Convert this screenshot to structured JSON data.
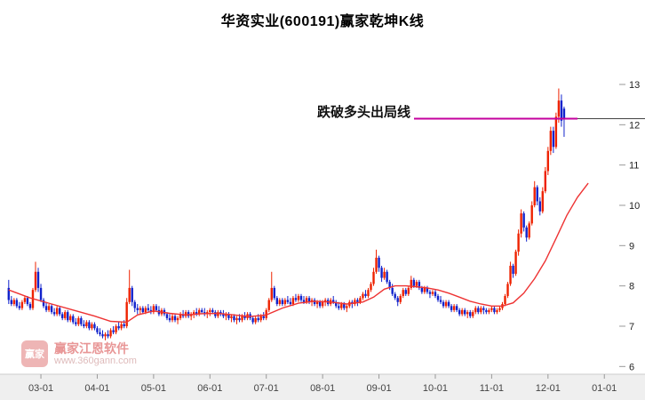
{
  "title": "华资实业(600191)赢家乾坤K线",
  "annotation": {
    "label": "跌破多头出局线",
    "value": 12.15
  },
  "watermark": {
    "logo_text": "赢家",
    "brand": "赢家江恩软件",
    "url": "www.360gann.com"
  },
  "colors": {
    "up": "#ee2200",
    "down": "#1122cc",
    "ma": "#ee3333",
    "annotation": "#c4009e",
    "axis_bg": "#efefef",
    "axis_text": "#444444",
    "price_line": "#444444"
  },
  "chart_data": {
    "type": "candlestick",
    "title": "华资实业(600191)赢家乾坤K线",
    "x_ticks": [
      "03-01",
      "04-01",
      "05-01",
      "06-01",
      "07-01",
      "08-01",
      "09-01",
      "10-01",
      "11-01",
      "12-01",
      "01-01"
    ],
    "x_tick_indices": [
      12,
      33,
      54,
      75,
      96,
      117,
      138,
      159,
      180,
      201,
      222
    ],
    "y_ticks": [
      13,
      12,
      11,
      10,
      9,
      8,
      7,
      6
    ],
    "ylim": [
      6,
      13
    ],
    "grid": false,
    "legend": "none",
    "series_note": "daily OHLC candles, values estimated from chart; red MA overlay line",
    "candles": [
      [
        7.95,
        8.15,
        7.55,
        7.65
      ],
      [
        7.65,
        7.75,
        7.5,
        7.55
      ],
      [
        7.55,
        7.7,
        7.5,
        7.65
      ],
      [
        7.65,
        7.7,
        7.45,
        7.5
      ],
      [
        7.5,
        7.6,
        7.4,
        7.45
      ],
      [
        7.45,
        7.65,
        7.4,
        7.6
      ],
      [
        7.6,
        7.75,
        7.55,
        7.7
      ],
      [
        7.7,
        7.75,
        7.5,
        7.55
      ],
      [
        7.55,
        7.6,
        7.4,
        7.45
      ],
      [
        7.45,
        7.95,
        7.4,
        7.9
      ],
      [
        7.9,
        8.6,
        7.85,
        8.35
      ],
      [
        8.35,
        8.45,
        7.85,
        7.95
      ],
      [
        7.95,
        8.05,
        7.6,
        7.65
      ],
      [
        7.65,
        7.7,
        7.45,
        7.5
      ],
      [
        7.5,
        7.6,
        7.35,
        7.4
      ],
      [
        7.4,
        7.55,
        7.35,
        7.5
      ],
      [
        7.5,
        7.55,
        7.3,
        7.35
      ],
      [
        7.35,
        7.45,
        7.25,
        7.3
      ],
      [
        7.3,
        7.5,
        7.25,
        7.45
      ],
      [
        7.45,
        7.5,
        7.25,
        7.3
      ],
      [
        7.3,
        7.35,
        7.15,
        7.2
      ],
      [
        7.2,
        7.4,
        7.15,
        7.35
      ],
      [
        7.35,
        7.4,
        7.1,
        7.15
      ],
      [
        7.15,
        7.3,
        7.1,
        7.25
      ],
      [
        7.25,
        7.3,
        7.05,
        7.1
      ],
      [
        7.1,
        7.2,
        7.0,
        7.05
      ],
      [
        7.05,
        7.25,
        7.0,
        7.2
      ],
      [
        7.2,
        7.25,
        7.0,
        7.05
      ],
      [
        7.05,
        7.15,
        6.95,
        7.0
      ],
      [
        7.0,
        7.15,
        6.95,
        7.1
      ],
      [
        7.1,
        7.15,
        6.9,
        6.95
      ],
      [
        6.95,
        7.1,
        6.9,
        7.05
      ],
      [
        7.05,
        7.1,
        6.9,
        6.95
      ],
      [
        6.95,
        7.0,
        6.8,
        6.85
      ],
      [
        6.85,
        6.95,
        6.75,
        6.8
      ],
      [
        6.8,
        6.9,
        6.7,
        6.75
      ],
      [
        6.75,
        6.85,
        6.65,
        6.8
      ],
      [
        6.8,
        6.9,
        6.7,
        6.75
      ],
      [
        6.75,
        6.95,
        6.7,
        6.9
      ],
      [
        6.9,
        7.0,
        6.8,
        6.85
      ],
      [
        6.85,
        7.05,
        6.8,
        7.0
      ],
      [
        7.0,
        7.1,
        6.9,
        6.95
      ],
      [
        6.95,
        7.1,
        6.9,
        7.05
      ],
      [
        7.05,
        7.15,
        6.95,
        7.0
      ],
      [
        7.0,
        7.7,
        6.95,
        7.6
      ],
      [
        7.6,
        8.4,
        7.55,
        7.95
      ],
      [
        7.95,
        8.0,
        7.5,
        7.6
      ],
      [
        7.6,
        7.65,
        7.35,
        7.45
      ],
      [
        7.45,
        7.55,
        7.3,
        7.4
      ],
      [
        7.4,
        7.5,
        7.3,
        7.45
      ],
      [
        7.45,
        7.5,
        7.3,
        7.35
      ],
      [
        7.35,
        7.5,
        7.3,
        7.45
      ],
      [
        7.45,
        7.55,
        7.35,
        7.4
      ],
      [
        7.4,
        7.5,
        7.3,
        7.35
      ],
      [
        7.35,
        7.55,
        7.3,
        7.5
      ],
      [
        7.5,
        7.55,
        7.35,
        7.4
      ],
      [
        7.4,
        7.5,
        7.25,
        7.3
      ],
      [
        7.3,
        7.45,
        7.25,
        7.4
      ],
      [
        7.4,
        7.45,
        7.25,
        7.3
      ],
      [
        7.3,
        7.35,
        7.15,
        7.2
      ],
      [
        7.2,
        7.3,
        7.1,
        7.15
      ],
      [
        7.15,
        7.3,
        7.1,
        7.25
      ],
      [
        7.25,
        7.3,
        7.1,
        7.15
      ],
      [
        7.15,
        7.25,
        7.05,
        7.2
      ],
      [
        7.2,
        7.35,
        7.15,
        7.3
      ],
      [
        7.3,
        7.4,
        7.2,
        7.25
      ],
      [
        7.25,
        7.4,
        7.2,
        7.35
      ],
      [
        7.35,
        7.4,
        7.2,
        7.25
      ],
      [
        7.25,
        7.35,
        7.15,
        7.3
      ],
      [
        7.3,
        7.4,
        7.2,
        7.35
      ],
      [
        7.35,
        7.45,
        7.25,
        7.3
      ],
      [
        7.3,
        7.45,
        7.25,
        7.4
      ],
      [
        7.4,
        7.45,
        7.3,
        7.35
      ],
      [
        7.35,
        7.45,
        7.25,
        7.3
      ],
      [
        7.3,
        7.4,
        7.2,
        7.35
      ],
      [
        7.35,
        7.45,
        7.25,
        7.4
      ],
      [
        7.4,
        7.45,
        7.3,
        7.35
      ],
      [
        7.35,
        7.4,
        7.2,
        7.25
      ],
      [
        7.25,
        7.4,
        7.2,
        7.35
      ],
      [
        7.35,
        7.4,
        7.25,
        7.3
      ],
      [
        7.3,
        7.4,
        7.2,
        7.25
      ],
      [
        7.25,
        7.35,
        7.15,
        7.3
      ],
      [
        7.3,
        7.35,
        7.15,
        7.2
      ],
      [
        7.2,
        7.3,
        7.1,
        7.25
      ],
      [
        7.25,
        7.3,
        7.1,
        7.15
      ],
      [
        7.15,
        7.25,
        7.05,
        7.2
      ],
      [
        7.2,
        7.3,
        7.1,
        7.15
      ],
      [
        7.15,
        7.3,
        7.1,
        7.25
      ],
      [
        7.25,
        7.35,
        7.15,
        7.2
      ],
      [
        7.2,
        7.35,
        7.15,
        7.3
      ],
      [
        7.3,
        7.35,
        7.15,
        7.2
      ],
      [
        7.2,
        7.25,
        7.05,
        7.1
      ],
      [
        7.1,
        7.25,
        7.05,
        7.2
      ],
      [
        7.2,
        7.3,
        7.1,
        7.15
      ],
      [
        7.15,
        7.3,
        7.1,
        7.25
      ],
      [
        7.25,
        7.35,
        7.15,
        7.2
      ],
      [
        7.2,
        7.45,
        7.15,
        7.4
      ],
      [
        7.4,
        7.7,
        7.35,
        7.65
      ],
      [
        7.65,
        8.35,
        7.6,
        7.95
      ],
      [
        7.95,
        8.0,
        7.65,
        7.7
      ],
      [
        7.7,
        7.75,
        7.5,
        7.55
      ],
      [
        7.55,
        7.7,
        7.5,
        7.65
      ],
      [
        7.65,
        7.7,
        7.5,
        7.55
      ],
      [
        7.55,
        7.7,
        7.5,
        7.65
      ],
      [
        7.65,
        7.75,
        7.55,
        7.6
      ],
      [
        7.6,
        7.7,
        7.5,
        7.55
      ],
      [
        7.55,
        7.75,
        7.5,
        7.7
      ],
      [
        7.7,
        7.8,
        7.6,
        7.65
      ],
      [
        7.65,
        7.8,
        7.6,
        7.75
      ],
      [
        7.75,
        7.8,
        7.6,
        7.65
      ],
      [
        7.65,
        7.75,
        7.55,
        7.6
      ],
      [
        7.6,
        7.75,
        7.55,
        7.7
      ],
      [
        7.7,
        7.75,
        7.55,
        7.6
      ],
      [
        7.6,
        7.7,
        7.5,
        7.65
      ],
      [
        7.65,
        7.7,
        7.5,
        7.55
      ],
      [
        7.55,
        7.65,
        7.45,
        7.6
      ],
      [
        7.6,
        7.65,
        7.45,
        7.5
      ],
      [
        7.5,
        7.65,
        7.45,
        7.6
      ],
      [
        7.6,
        7.7,
        7.5,
        7.65
      ],
      [
        7.65,
        7.7,
        7.5,
        7.55
      ],
      [
        7.55,
        7.7,
        7.5,
        7.65
      ],
      [
        7.65,
        7.75,
        7.55,
        7.6
      ],
      [
        7.6,
        7.65,
        7.45,
        7.5
      ],
      [
        7.5,
        7.6,
        7.4,
        7.45
      ],
      [
        7.45,
        7.6,
        7.4,
        7.55
      ],
      [
        7.55,
        7.6,
        7.4,
        7.45
      ],
      [
        7.45,
        7.55,
        7.35,
        7.5
      ],
      [
        7.5,
        7.65,
        7.45,
        7.6
      ],
      [
        7.6,
        7.65,
        7.45,
        7.55
      ],
      [
        7.55,
        7.7,
        7.5,
        7.65
      ],
      [
        7.65,
        7.7,
        7.5,
        7.6
      ],
      [
        7.6,
        7.75,
        7.55,
        7.7
      ],
      [
        7.7,
        7.85,
        7.65,
        7.8
      ],
      [
        7.8,
        7.9,
        7.7,
        7.75
      ],
      [
        7.75,
        7.95,
        7.7,
        7.9
      ],
      [
        7.9,
        8.1,
        7.85,
        8.05
      ],
      [
        8.05,
        8.45,
        8.0,
        8.35
      ],
      [
        8.35,
        8.9,
        8.3,
        8.7
      ],
      [
        8.7,
        8.75,
        8.35,
        8.45
      ],
      [
        8.45,
        8.5,
        8.1,
        8.2
      ],
      [
        8.2,
        8.45,
        8.15,
        8.35
      ],
      [
        8.35,
        8.4,
        8.05,
        8.1
      ],
      [
        8.1,
        8.15,
        7.9,
        7.95
      ],
      [
        7.95,
        8.05,
        7.75,
        7.8
      ],
      [
        7.8,
        7.85,
        7.65,
        7.7
      ],
      [
        7.7,
        7.75,
        7.5,
        7.6
      ],
      [
        7.6,
        7.8,
        7.55,
        7.75
      ],
      [
        7.75,
        7.95,
        7.7,
        7.9
      ],
      [
        7.9,
        7.95,
        7.75,
        7.8
      ],
      [
        7.8,
        8.0,
        7.75,
        7.95
      ],
      [
        7.95,
        8.25,
        7.9,
        8.15
      ],
      [
        8.15,
        8.2,
        7.95,
        8.0
      ],
      [
        8.0,
        8.15,
        7.95,
        8.1
      ],
      [
        8.1,
        8.15,
        7.9,
        7.95
      ],
      [
        7.95,
        8.0,
        7.8,
        7.85
      ],
      [
        7.85,
        8.0,
        7.8,
        7.95
      ],
      [
        7.95,
        8.0,
        7.8,
        7.85
      ],
      [
        7.85,
        7.9,
        7.7,
        7.8
      ],
      [
        7.8,
        7.9,
        7.75,
        7.85
      ],
      [
        7.85,
        7.9,
        7.7,
        7.75
      ],
      [
        7.75,
        7.8,
        7.6,
        7.65
      ],
      [
        7.65,
        7.75,
        7.55,
        7.6
      ],
      [
        7.6,
        7.65,
        7.45,
        7.5
      ],
      [
        7.5,
        7.65,
        7.45,
        7.6
      ],
      [
        7.6,
        7.65,
        7.45,
        7.5
      ],
      [
        7.5,
        7.55,
        7.35,
        7.4
      ],
      [
        7.4,
        7.55,
        7.35,
        7.5
      ],
      [
        7.5,
        7.55,
        7.35,
        7.4
      ],
      [
        7.4,
        7.45,
        7.25,
        7.3
      ],
      [
        7.3,
        7.45,
        7.25,
        7.4
      ],
      [
        7.4,
        7.45,
        7.25,
        7.3
      ],
      [
        7.3,
        7.4,
        7.2,
        7.35
      ],
      [
        7.35,
        7.4,
        7.2,
        7.25
      ],
      [
        7.25,
        7.4,
        7.2,
        7.35
      ],
      [
        7.35,
        7.5,
        7.3,
        7.45
      ],
      [
        7.45,
        7.5,
        7.3,
        7.35
      ],
      [
        7.35,
        7.5,
        7.3,
        7.45
      ],
      [
        7.45,
        7.5,
        7.3,
        7.4
      ],
      [
        7.4,
        7.45,
        7.3,
        7.35
      ],
      [
        7.35,
        7.45,
        7.3,
        7.4
      ],
      [
        7.4,
        7.5,
        7.35,
        7.45
      ],
      [
        7.45,
        7.5,
        7.3,
        7.35
      ],
      [
        7.35,
        7.45,
        7.3,
        7.4
      ],
      [
        7.4,
        7.5,
        7.35,
        7.45
      ],
      [
        7.45,
        7.6,
        7.4,
        7.55
      ],
      [
        7.55,
        7.8,
        7.5,
        7.75
      ],
      [
        7.75,
        8.1,
        7.7,
        8.05
      ],
      [
        8.05,
        8.6,
        8.0,
        8.5
      ],
      [
        8.5,
        8.55,
        8.2,
        8.3
      ],
      [
        8.3,
        8.9,
        8.25,
        8.85
      ],
      [
        8.85,
        9.4,
        8.75,
        9.3
      ],
      [
        9.3,
        9.9,
        9.2,
        9.8
      ],
      [
        9.8,
        9.85,
        9.35,
        9.45
      ],
      [
        9.45,
        9.5,
        9.1,
        9.2
      ],
      [
        9.2,
        9.6,
        9.15,
        9.55
      ],
      [
        9.55,
        10.1,
        9.5,
        10.0
      ],
      [
        10.0,
        10.6,
        9.95,
        10.45
      ],
      [
        10.45,
        10.5,
        10.0,
        10.1
      ],
      [
        10.1,
        10.2,
        9.75,
        9.85
      ],
      [
        9.85,
        10.45,
        9.8,
        10.35
      ],
      [
        10.35,
        10.95,
        10.3,
        10.85
      ],
      [
        10.85,
        11.45,
        10.75,
        11.35
      ],
      [
        11.35,
        11.95,
        11.25,
        11.85
      ],
      [
        11.85,
        11.95,
        11.3,
        11.45
      ],
      [
        11.45,
        12.3,
        11.4,
        12.2
      ],
      [
        12.2,
        12.9,
        12.05,
        12.6
      ],
      [
        12.6,
        12.75,
        11.95,
        12.1
      ],
      [
        12.4,
        12.45,
        11.7,
        12.15
      ]
    ],
    "ma_line": [
      [
        0,
        7.9
      ],
      [
        8,
        7.7
      ],
      [
        16,
        7.55
      ],
      [
        24,
        7.4
      ],
      [
        32,
        7.25
      ],
      [
        38,
        7.12
      ],
      [
        44,
        7.1
      ],
      [
        48,
        7.28
      ],
      [
        54,
        7.38
      ],
      [
        60,
        7.32
      ],
      [
        66,
        7.28
      ],
      [
        72,
        7.31
      ],
      [
        78,
        7.32
      ],
      [
        84,
        7.28
      ],
      [
        90,
        7.24
      ],
      [
        96,
        7.28
      ],
      [
        102,
        7.45
      ],
      [
        108,
        7.57
      ],
      [
        114,
        7.62
      ],
      [
        120,
        7.6
      ],
      [
        126,
        7.55
      ],
      [
        132,
        7.6
      ],
      [
        136,
        7.72
      ],
      [
        140,
        7.92
      ],
      [
        144,
        8.0
      ],
      [
        148,
        8.0
      ],
      [
        152,
        7.98
      ],
      [
        156,
        7.95
      ],
      [
        160,
        7.9
      ],
      [
        164,
        7.82
      ],
      [
        168,
        7.72
      ],
      [
        172,
        7.62
      ],
      [
        176,
        7.55
      ],
      [
        180,
        7.5
      ],
      [
        184,
        7.5
      ],
      [
        188,
        7.58
      ],
      [
        192,
        7.82
      ],
      [
        196,
        8.18
      ],
      [
        200,
        8.62
      ],
      [
        204,
        9.18
      ],
      [
        208,
        9.75
      ],
      [
        212,
        10.2
      ],
      [
        216,
        10.55
      ]
    ]
  }
}
